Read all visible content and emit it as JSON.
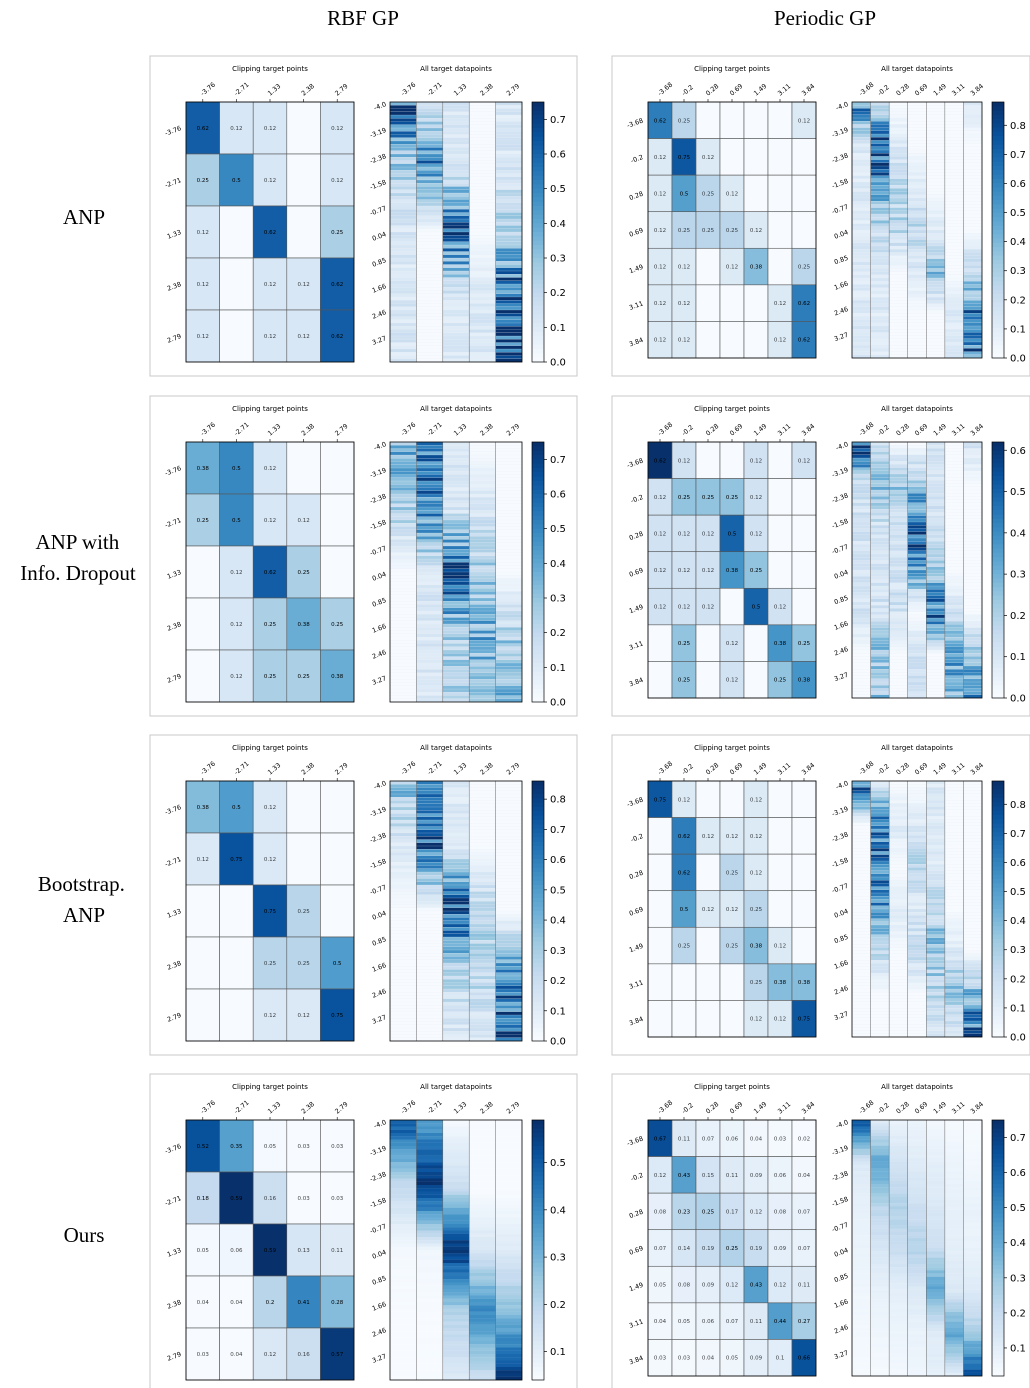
{
  "column_headers": [
    "RBF GP",
    "Periodic GP"
  ],
  "row_headers": [
    [
      "ANP"
    ],
    [
      "ANP with",
      "Info. Dropout"
    ],
    [
      "Bootstrap.",
      "ANP"
    ],
    [
      "Ours"
    ]
  ],
  "chart_data": {
    "type": "heatmap",
    "colormap": "Blues",
    "panel_titles": {
      "clipping": "Clipping target points",
      "all": "All target datapoints"
    },
    "rbf": {
      "ticks": [
        "-3.76",
        "-2.71",
        "1.33",
        "2.38",
        "2.79"
      ],
      "y_ticks_all": [
        "-4.0",
        "-3.19",
        "-2.38",
        "-1.58",
        "-0.77",
        "0.04",
        "0.85",
        "1.66",
        "2.46",
        "3.27"
      ]
    },
    "periodic": {
      "ticks": [
        "-3.68",
        "-0.2",
        "0.28",
        "0.69",
        "1.49",
        "3.11",
        "3.84"
      ],
      "y_ticks_all": [
        "-4.0",
        "-3.19",
        "-2.38",
        "-1.58",
        "-0.77",
        "0.04",
        "0.85",
        "1.66",
        "2.46",
        "3.27"
      ]
    },
    "panels": [
      {
        "row": "ANP",
        "column": "RBF GP",
        "clipping_matrix": [
          [
            0.62,
            0.12,
            0.12,
            0.0,
            0.12
          ],
          [
            0.25,
            0.5,
            0.12,
            0.0,
            0.12
          ],
          [
            0.12,
            0.0,
            0.62,
            0.0,
            0.25
          ],
          [
            0.12,
            0.0,
            0.12,
            0.12,
            0.62
          ],
          [
            0.12,
            0.0,
            0.12,
            0.12,
            0.62
          ]
        ],
        "colorbar_ticks": [
          "0.0",
          "0.1",
          "0.2",
          "0.3",
          "0.4",
          "0.5",
          "0.6",
          "0.7"
        ],
        "colorbar_max": 0.75
      },
      {
        "row": "ANP",
        "column": "Periodic GP",
        "clipping_matrix": [
          [
            0.62,
            0.25,
            0.0,
            0.0,
            0.0,
            0.0,
            0.12
          ],
          [
            0.12,
            0.75,
            0.12,
            0.0,
            0.0,
            0.0,
            0.0
          ],
          [
            0.12,
            0.5,
            0.25,
            0.12,
            0.0,
            0.0,
            0.0
          ],
          [
            0.12,
            0.25,
            0.25,
            0.25,
            0.12,
            0.0,
            0.0
          ],
          [
            0.12,
            0.12,
            0.0,
            0.12,
            0.38,
            0.0,
            0.25
          ],
          [
            0.12,
            0.12,
            0.0,
            0.0,
            0.0,
            0.12,
            0.62
          ],
          [
            0.12,
            0.12,
            0.0,
            0.0,
            0.0,
            0.12,
            0.62
          ]
        ],
        "colorbar_ticks": [
          "0.0",
          "0.1",
          "0.2",
          "0.3",
          "0.4",
          "0.5",
          "0.6",
          "0.7",
          "0.8"
        ],
        "colorbar_max": 0.88
      },
      {
        "row": "ANP with Info. Dropout",
        "column": "RBF GP",
        "clipping_matrix": [
          [
            0.38,
            0.5,
            0.12,
            0.0,
            0.0
          ],
          [
            0.25,
            0.5,
            0.12,
            0.12,
            0.0
          ],
          [
            0.0,
            0.12,
            0.62,
            0.25,
            0.0
          ],
          [
            0.0,
            0.12,
            0.25,
            0.38,
            0.25
          ],
          [
            0.0,
            0.12,
            0.25,
            0.25,
            0.38
          ]
        ],
        "colorbar_ticks": [
          "0.0",
          "0.1",
          "0.2",
          "0.3",
          "0.4",
          "0.5",
          "0.6",
          "0.7"
        ],
        "colorbar_max": 0.75
      },
      {
        "row": "ANP with Info. Dropout",
        "column": "Periodic GP",
        "clipping_matrix": [
          [
            0.62,
            0.12,
            0.0,
            0.0,
            0.12,
            0.0,
            0.12
          ],
          [
            0.12,
            0.25,
            0.25,
            0.25,
            0.12,
            0.0,
            0.0
          ],
          [
            0.12,
            0.12,
            0.12,
            0.5,
            0.12,
            0.0,
            0.0
          ],
          [
            0.12,
            0.12,
            0.12,
            0.38,
            0.25,
            0.0,
            0.0
          ],
          [
            0.12,
            0.12,
            0.12,
            0.0,
            0.5,
            0.12,
            0.0
          ],
          [
            0.0,
            0.25,
            0.0,
            0.12,
            0.0,
            0.38,
            0.25
          ],
          [
            0.0,
            0.25,
            0.0,
            0.12,
            0.0,
            0.25,
            0.38
          ]
        ],
        "colorbar_ticks": [
          "0.0",
          "0.1",
          "0.2",
          "0.3",
          "0.4",
          "0.5",
          "0.6"
        ],
        "colorbar_max": 0.62
      },
      {
        "row": "Bootstrap. ANP",
        "column": "RBF GP",
        "clipping_matrix": [
          [
            0.38,
            0.5,
            0.12,
            0.0,
            0.0
          ],
          [
            0.12,
            0.75,
            0.12,
            0.0,
            0.0
          ],
          [
            0.0,
            0.0,
            0.75,
            0.25,
            0.0
          ],
          [
            0.0,
            0.0,
            0.25,
            0.25,
            0.5
          ],
          [
            0.0,
            0.0,
            0.12,
            0.12,
            0.75
          ]
        ],
        "colorbar_ticks": [
          "0.0",
          "0.1",
          "0.2",
          "0.3",
          "0.4",
          "0.5",
          "0.6",
          "0.7",
          "0.8"
        ],
        "colorbar_max": 0.86
      },
      {
        "row": "Bootstrap. ANP",
        "column": "Periodic GP",
        "clipping_matrix": [
          [
            0.75,
            0.12,
            0.0,
            0.0,
            0.12,
            0.0,
            0.0
          ],
          [
            0.0,
            0.62,
            0.12,
            0.12,
            0.12,
            0.0,
            0.0
          ],
          [
            0.0,
            0.62,
            0.0,
            0.25,
            0.12,
            0.0,
            0.0
          ],
          [
            0.0,
            0.5,
            0.12,
            0.12,
            0.25,
            0.0,
            0.0
          ],
          [
            0.0,
            0.25,
            0.0,
            0.25,
            0.38,
            0.12,
            0.0
          ],
          [
            0.0,
            0.0,
            0.0,
            0.0,
            0.25,
            0.38,
            0.38
          ],
          [
            0.0,
            0.0,
            0.0,
            0.0,
            0.12,
            0.12,
            0.75
          ]
        ],
        "colorbar_ticks": [
          "0.0",
          "0.1",
          "0.2",
          "0.3",
          "0.4",
          "0.5",
          "0.6",
          "0.7",
          "0.8"
        ],
        "colorbar_max": 0.88
      },
      {
        "row": "Ours",
        "column": "RBF GP",
        "clipping_matrix": [
          [
            0.52,
            0.35,
            0.05,
            0.03,
            0.03
          ],
          [
            0.18,
            0.59,
            0.16,
            0.03,
            0.03
          ],
          [
            0.05,
            0.06,
            0.59,
            0.13,
            0.11
          ],
          [
            0.04,
            0.04,
            0.2,
            0.41,
            0.28
          ],
          [
            0.03,
            0.04,
            0.12,
            0.16,
            0.57
          ]
        ],
        "colorbar_ticks": [
          "0.1",
          "0.2",
          "0.3",
          "0.4",
          "0.5"
        ],
        "colorbar_min": 0.04,
        "colorbar_max": 0.59
      },
      {
        "row": "Ours",
        "column": "Periodic GP",
        "clipping_matrix": [
          [
            0.67,
            0.11,
            0.07,
            0.06,
            0.04,
            0.03,
            0.02
          ],
          [
            0.12,
            0.43,
            0.15,
            0.11,
            0.09,
            0.06,
            0.04
          ],
          [
            0.08,
            0.23,
            0.25,
            0.17,
            0.12,
            0.08,
            0.07
          ],
          [
            0.07,
            0.14,
            0.19,
            0.25,
            0.19,
            0.09,
            0.07
          ],
          [
            0.05,
            0.08,
            0.09,
            0.12,
            0.43,
            0.12,
            0.11
          ],
          [
            0.04,
            0.05,
            0.06,
            0.07,
            0.11,
            0.44,
            0.27
          ],
          [
            0.03,
            0.03,
            0.04,
            0.05,
            0.09,
            0.1,
            0.66
          ]
        ],
        "colorbar_ticks": [
          "0.1",
          "0.2",
          "0.3",
          "0.4",
          "0.5",
          "0.6",
          "0.7"
        ],
        "colorbar_min": 0.02,
        "colorbar_max": 0.75
      }
    ]
  }
}
